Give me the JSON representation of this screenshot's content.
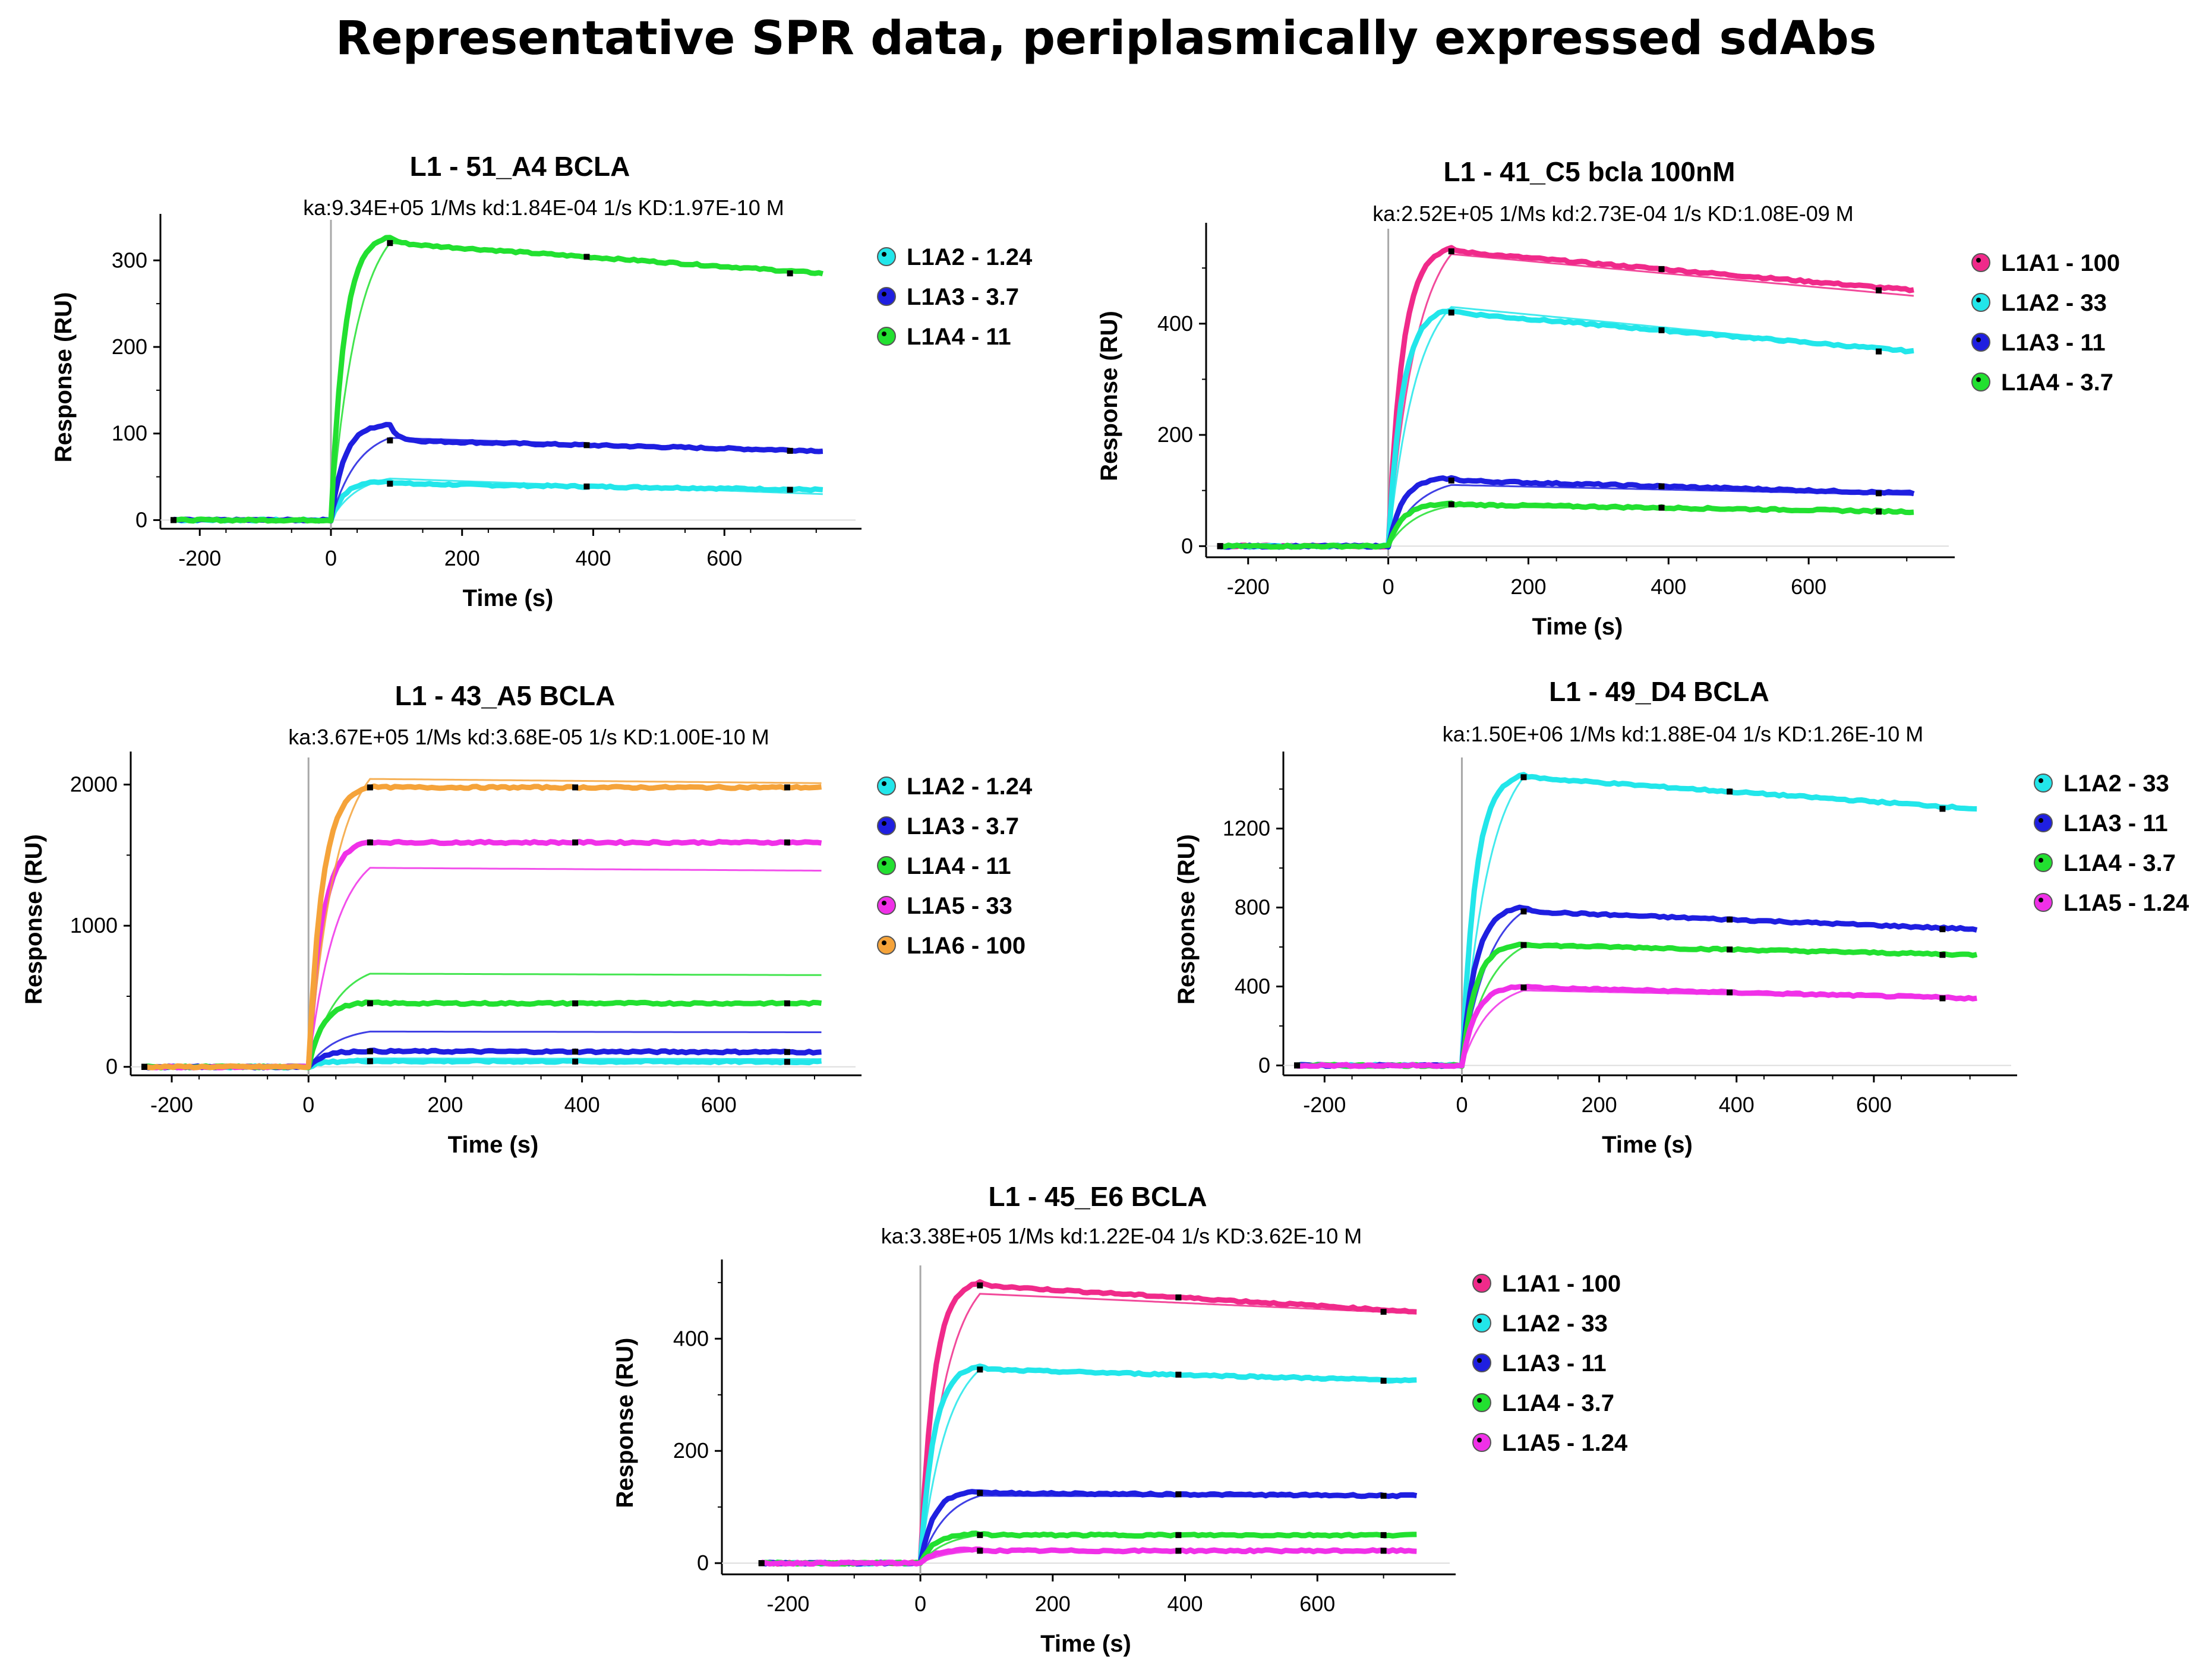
{
  "page_title": "Representative SPR data, periplasmically expressed sdAbs",
  "colors": {
    "cyan": "#22e6ea",
    "blue": "#1f1fe0",
    "green": "#22e030",
    "magenta": "#f030e8",
    "orange": "#f5a33a",
    "pink": "#f02a8a",
    "axis": "#000000",
    "injection_line": "#a8a8a8"
  },
  "chart_data": [
    {
      "type": "line",
      "title": "L1 - 51_A4 BCLA",
      "subtitle": "ka:9.34E+05 1/Ms  kd:1.84E-04 1/s  KD:1.97E-10 M",
      "xlabel": "Time (s)",
      "ylabel": "Response (RU)",
      "xlim": [
        -260,
        800
      ],
      "ylim": [
        -10,
        340
      ],
      "xticks": [
        -200,
        0,
        200,
        400,
        600
      ],
      "yticks": [
        0,
        100,
        200,
        300
      ],
      "series": [
        {
          "name": "L1A2 - 1.24",
          "color": "cyan",
          "plateau": 42,
          "peak": 45,
          "end": 35,
          "fit_plateau": 48,
          "fit_end": 30
        },
        {
          "name": "L1A3 - 3.7",
          "color": "blue",
          "plateau": 92,
          "peak": 110,
          "end": 80,
          "fit_plateau": 95,
          "fit_end": 80
        },
        {
          "name": "L1A4 - 11",
          "color": "green",
          "plateau": 320,
          "peak": 327,
          "end": 285,
          "fit_plateau": 320,
          "fit_end": 285
        }
      ]
    },
    {
      "type": "line",
      "title": "L1 - 41_C5 bcla  100nM",
      "subtitle": "ka:2.52E+05 1/Ms  kd:2.73E-04 1/s  KD:1.08E-09 M",
      "xlabel": "Time (s)",
      "ylabel": "Response (RU)",
      "xlim": [
        -260,
        800
      ],
      "ylim": [
        -20,
        560
      ],
      "xticks": [
        -200,
        0,
        200,
        400,
        600
      ],
      "yticks": [
        0,
        200,
        400
      ],
      "series": [
        {
          "name": "L1A1 - 100",
          "color": "pink",
          "plateau": 530,
          "peak": 535,
          "end": 460,
          "fit_plateau": 525,
          "fit_end": 450
        },
        {
          "name": "L1A2 - 33",
          "color": "cyan",
          "plateau": 420,
          "peak": 425,
          "end": 350,
          "fit_plateau": 430,
          "fit_end": 350
        },
        {
          "name": "L1A3 - 11",
          "color": "blue",
          "plateau": 118,
          "peak": 122,
          "end": 95,
          "fit_plateau": 110,
          "fit_end": 92
        },
        {
          "name": "L1A4 - 3.7",
          "color": "green",
          "plateau": 75,
          "peak": 76,
          "end": 62,
          "fit_plateau": 72,
          "fit_end": 60
        }
      ]
    },
    {
      "type": "line",
      "title": "L1 - 43_A5 BCLA",
      "subtitle": "ka:3.67E+05 1/Ms  kd:3.68E-05 1/s  KD:1.00E-10 M",
      "xlabel": "Time (s)",
      "ylabel": "Response (RU)",
      "xlim": [
        -260,
        800
      ],
      "ylim": [
        -60,
        2150
      ],
      "xticks": [
        -200,
        0,
        200,
        400,
        600
      ],
      "yticks": [
        0,
        1000,
        2000
      ],
      "series": [
        {
          "name": "L1A2 - 1.24",
          "color": "cyan",
          "plateau": 40,
          "peak": 42,
          "end": 35,
          "fit_plateau": 60,
          "fit_end": 55
        },
        {
          "name": "L1A3 - 3.7",
          "color": "blue",
          "plateau": 110,
          "peak": 112,
          "end": 105,
          "fit_plateau": 250,
          "fit_end": 245
        },
        {
          "name": "L1A4 - 11",
          "color": "green",
          "plateau": 450,
          "peak": 455,
          "end": 450,
          "fit_plateau": 660,
          "fit_end": 650
        },
        {
          "name": "L1A5 - 33",
          "color": "magenta",
          "plateau": 1590,
          "peak": 1595,
          "end": 1590,
          "fit_plateau": 1410,
          "fit_end": 1390
        },
        {
          "name": "L1A6 - 100",
          "color": "orange",
          "plateau": 1980,
          "peak": 1985,
          "end": 1980,
          "fit_plateau": 2040,
          "fit_end": 2010
        }
      ]
    },
    {
      "type": "line",
      "title": "L1 - 49_D4 BCLA",
      "subtitle": "ka:1.50E+06 1/Ms  kd:1.88E-04 1/s  KD:1.26E-10 M",
      "xlabel": "Time (s)",
      "ylabel": "Response (RU)",
      "xlim": [
        -260,
        800
      ],
      "ylim": [
        -50,
        1530
      ],
      "xticks": [
        -200,
        0,
        200,
        400,
        600
      ],
      "yticks": [
        0,
        400,
        800,
        1200
      ],
      "series": [
        {
          "name": "L1A2 - 33",
          "color": "cyan",
          "plateau": 1460,
          "peak": 1470,
          "end": 1300,
          "fit_plateau": 1460,
          "fit_end": 1300
        },
        {
          "name": "L1A3 - 11",
          "color": "blue",
          "plateau": 780,
          "peak": 800,
          "end": 690,
          "fit_plateau": 780,
          "fit_end": 690
        },
        {
          "name": "L1A4 - 3.7",
          "color": "green",
          "plateau": 610,
          "peak": 615,
          "end": 560,
          "fit_plateau": 600,
          "fit_end": 560
        },
        {
          "name": "L1A5 - 1.24",
          "color": "magenta",
          "plateau": 395,
          "peak": 400,
          "end": 340,
          "fit_plateau": 380,
          "fit_end": 335
        }
      ]
    },
    {
      "type": "line",
      "title": "L1 - 45_E6 BCLA",
      "subtitle": "ka:3.38E+05 1/Ms  kd:1.22E-04 1/s  KD:3.62E-10 M",
      "xlabel": "Time (s)",
      "ylabel": "Response (RU)",
      "xlim": [
        -300,
        800
      ],
      "ylim": [
        -20,
        520
      ],
      "xticks": [
        -200,
        0,
        200,
        400,
        600
      ],
      "yticks": [
        0,
        200,
        400
      ],
      "series": [
        {
          "name": "L1A1 - 100",
          "color": "pink",
          "plateau": 495,
          "peak": 500,
          "end": 448,
          "fit_plateau": 480,
          "fit_end": 445
        },
        {
          "name": "L1A2 - 33",
          "color": "cyan",
          "plateau": 345,
          "peak": 350,
          "end": 325,
          "fit_plateau": 345,
          "fit_end": 328
        },
        {
          "name": "L1A3 - 11",
          "color": "blue",
          "plateau": 125,
          "peak": 128,
          "end": 120,
          "fit_plateau": 120,
          "fit_end": 118
        },
        {
          "name": "L1A4 - 3.7",
          "color": "green",
          "plateau": 50,
          "peak": 52,
          "end": 50,
          "fit_plateau": 50,
          "fit_end": 48
        },
        {
          "name": "L1A5 - 1.24",
          "color": "magenta",
          "plateau": 22,
          "peak": 24,
          "end": 22,
          "fit_plateau": 22,
          "fit_end": 20
        }
      ]
    }
  ]
}
